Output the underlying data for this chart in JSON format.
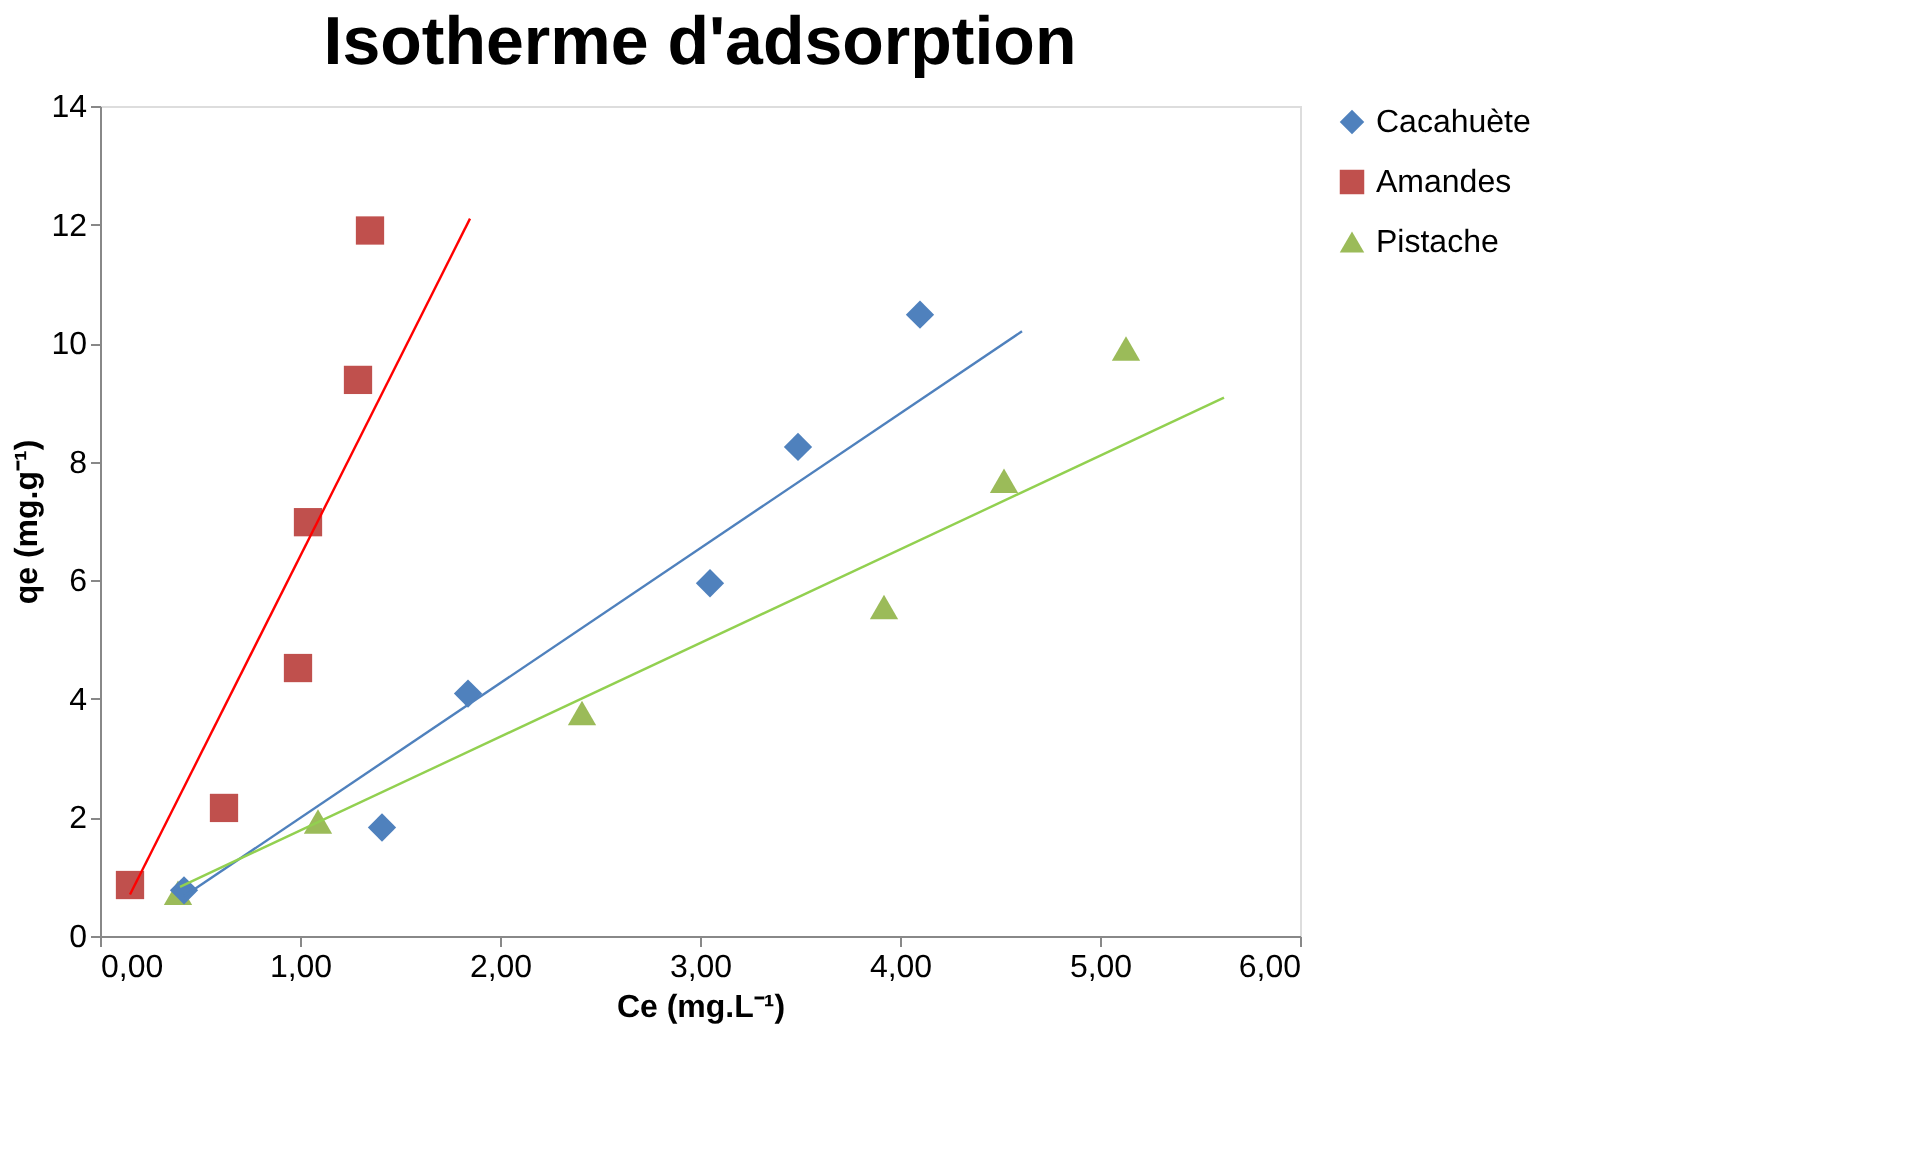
{
  "chart_data": {
    "type": "scatter",
    "title": "Isotherme d'adsorption",
    "xlabel": "Ce (mg.L⁻¹)",
    "ylabel": "qe (mg.g⁻¹)",
    "xlim": [
      0,
      6
    ],
    "xticks": [
      {
        "value": 0,
        "label": "0,00"
      },
      {
        "value": 1,
        "label": "1,00"
      },
      {
        "value": 2,
        "label": "2,00"
      },
      {
        "value": 3,
        "label": "3,00"
      },
      {
        "value": 4,
        "label": "4,00"
      },
      {
        "value": 5,
        "label": "5,00"
      },
      {
        "value": 6,
        "label": "6,00"
      }
    ],
    "ylim": [
      0,
      14
    ],
    "yticks": [
      0,
      2,
      4,
      6,
      8,
      10,
      12,
      14
    ],
    "grid": false,
    "legend": "right",
    "series": [
      {
        "name": "Cacahuète",
        "marker": "diamond",
        "color": "#4f81bd",
        "x": [
          0.42,
          1.41,
          1.84,
          3.05,
          3.49,
          4.1
        ],
        "values": [
          0.77,
          1.83,
          4.09,
          5.95,
          8.25,
          10.48
        ]
      },
      {
        "name": "Amandes",
        "marker": "square",
        "color": "#c0504d",
        "x": [
          0.15,
          0.62,
          0.99,
          1.04,
          1.29,
          1.35
        ],
        "values": [
          0.86,
          2.16,
          4.52,
          6.98,
          9.38,
          11.9
        ]
      },
      {
        "name": "Pistache",
        "marker": "triangle",
        "color": "#9bbb59",
        "x": [
          0.39,
          1.09,
          2.41,
          3.92,
          4.52,
          5.13
        ],
        "values": [
          0.73,
          1.93,
          3.76,
          5.55,
          7.68,
          9.91
        ]
      },
      {
        "type": "line",
        "color": "#4f81bd",
        "line_style": "solid",
        "x": [
          0.42,
          4.61
        ],
        "values": [
          0.67,
          10.2
        ]
      },
      {
        "type": "line",
        "color": "#ff0000",
        "line_style": "solid",
        "x": [
          0.15,
          1.85
        ],
        "values": [
          0.7,
          12.1
        ]
      },
      {
        "type": "line",
        "color": "#92d050",
        "line_style": "solid",
        "x": [
          0.4,
          5.62
        ],
        "values": [
          0.83,
          9.08
        ]
      }
    ]
  }
}
